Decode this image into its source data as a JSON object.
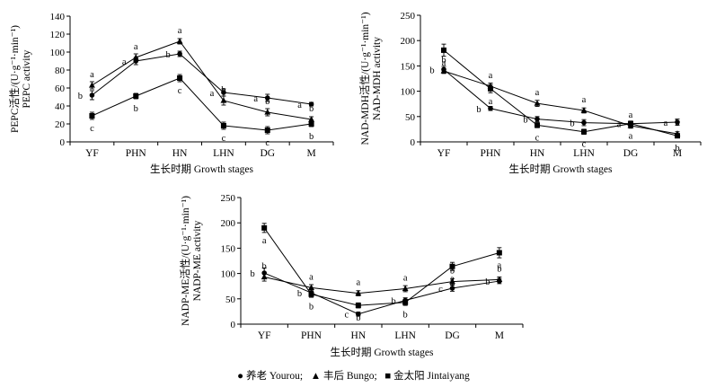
{
  "chart_data": [
    {
      "type": "line",
      "panel": "PEPC",
      "ylabel": "PEPC活性/(U·g⁻¹·min⁻¹)",
      "ylabel2": "PEPC activity",
      "xlabel": "生长时期 Growth stages",
      "categories": [
        "YF",
        "PHN",
        "HN",
        "LHN",
        "DG",
        "M"
      ],
      "ylim": [
        0,
        140
      ],
      "yticks": [
        0,
        20,
        40,
        60,
        80,
        100,
        120,
        140
      ],
      "series": [
        {
          "name": "养老 Yourou",
          "marker": "circle",
          "values": [
            52,
            90,
            98,
            55,
            49,
            42
          ],
          "err": [
            5,
            4,
            3,
            4,
            4,
            2
          ],
          "letters": [
            "b",
            "a",
            "b",
            "a",
            "a",
            "a"
          ]
        },
        {
          "name": "丰后 Bungo",
          "marker": "triangle",
          "values": [
            63,
            94,
            112,
            46,
            33,
            25
          ],
          "err": [
            4,
            4,
            3,
            5,
            4,
            3
          ],
          "letters": [
            "a",
            "a",
            "a",
            "b",
            "b",
            "b"
          ]
        },
        {
          "name": "金太阳 Jintaiyang",
          "marker": "square",
          "values": [
            29,
            51,
            71,
            18,
            13,
            20
          ],
          "err": [
            4,
            3,
            4,
            4,
            4,
            3
          ],
          "letters": [
            "c",
            "b",
            "c",
            "c",
            "c",
            "b"
          ]
        }
      ]
    },
    {
      "type": "line",
      "panel": "NAD-MDH",
      "ylabel": "NAD-MDH活性/(U·g⁻¹·min⁻¹)",
      "ylabel2": "NAD-MDH activity",
      "xlabel": "生长时期 Growth stages",
      "categories": [
        "YF",
        "PHN",
        "HN",
        "LHN",
        "DG",
        "M"
      ],
      "ylim": [
        0,
        250
      ],
      "yticks": [
        0,
        50,
        100,
        150,
        200,
        250
      ],
      "series": [
        {
          "name": "养老 Yourou",
          "marker": "circle",
          "values": [
            143,
            66,
            45,
            38,
            36,
            39
          ],
          "err": [
            6,
            4,
            5,
            6,
            5,
            6
          ],
          "letters": [
            "b",
            "b",
            "b",
            "b",
            "a",
            "a"
          ]
        },
        {
          "name": "丰后 Bungo",
          "marker": "triangle",
          "values": [
            140,
            110,
            76,
            62,
            32,
            16
          ],
          "err": [
            5,
            6,
            6,
            5,
            5,
            4
          ],
          "letters": [
            "b",
            "a",
            "a",
            "a",
            "a",
            "b"
          ]
        },
        {
          "name": "金太阳 Jintaiyang",
          "marker": "square",
          "values": [
            181,
            105,
            33,
            20,
            36,
            12
          ],
          "err": [
            12,
            8,
            5,
            5,
            5,
            3
          ],
          "letters": [
            "a",
            "a",
            "c",
            "c",
            "a",
            "b"
          ]
        }
      ]
    },
    {
      "type": "line",
      "panel": "NADP-ME",
      "ylabel": "NADP-ME活性/(U·g⁻¹·min⁻¹)",
      "ylabel2": "NADP-ME activity",
      "xlabel": "生长时期 Growth stages",
      "categories": [
        "YF",
        "PHN",
        "HN",
        "LHN",
        "DG",
        "M"
      ],
      "ylim": [
        0,
        250
      ],
      "yticks": [
        0,
        50,
        100,
        150,
        200,
        250
      ],
      "series": [
        {
          "name": "养老 Yourou",
          "marker": "circle",
          "values": [
            101,
            62,
            20,
            47,
            71,
            85
          ],
          "err": [
            10,
            6,
            4,
            5,
            6,
            5
          ],
          "letters": [
            "b",
            "b",
            "c",
            "b",
            "c",
            "b"
          ]
        },
        {
          "name": "丰后 Bungo",
          "marker": "triangle",
          "values": [
            93,
            72,
            61,
            70,
            84,
            88
          ],
          "err": [
            8,
            6,
            5,
            6,
            6,
            5
          ],
          "letters": [
            "b",
            "a",
            "a",
            "a",
            "b",
            "b"
          ]
        },
        {
          "name": "金太阳 Jintaiyang",
          "marker": "square",
          "values": [
            190,
            59,
            37,
            43,
            114,
            141
          ],
          "err": [
            9,
            6,
            5,
            6,
            8,
            10
          ],
          "letters": [
            "a",
            "b",
            "b",
            "b",
            "a",
            "a"
          ]
        }
      ]
    }
  ],
  "legend": {
    "items": [
      {
        "marker": "circle",
        "label": "养老 Yourou;"
      },
      {
        "marker": "triangle",
        "label": "丰后 Bungo;"
      },
      {
        "marker": "square",
        "label": "金太阳 Jintaiyang"
      }
    ]
  }
}
